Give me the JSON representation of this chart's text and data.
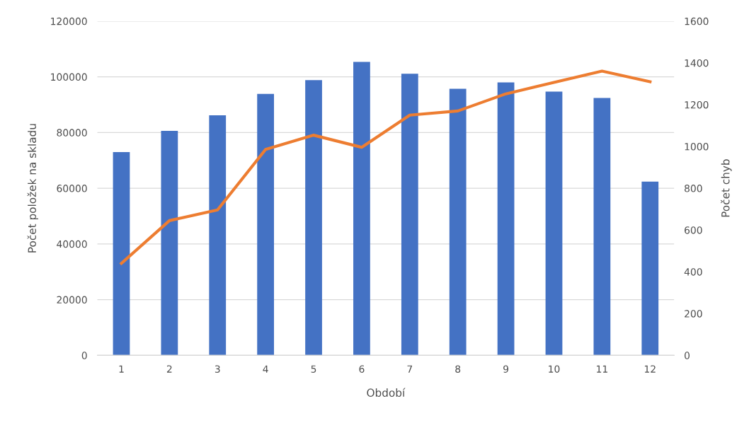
{
  "chart_data": {
    "type": "bar",
    "xlabel": "Období",
    "ylabel": "Počet položek na skladu",
    "y2label": "Počet chyb",
    "categories": [
      "1",
      "2",
      "3",
      "4",
      "5",
      "6",
      "7",
      "8",
      "9",
      "10",
      "11",
      "12"
    ],
    "series": [
      {
        "color": "#4472c4",
        "values": [
          73000,
          80600,
          86200,
          93900,
          98800,
          105400,
          101100,
          95700,
          98000,
          94700,
          92400,
          62400
        ]
      },
      {
        "type": "line",
        "axis": "y2",
        "color": "#ed7d31",
        "values": [
          440,
          645,
          696,
          986,
          1054,
          996,
          1150,
          1170,
          1252,
          1307,
          1361,
          1310
        ]
      }
    ],
    "ylim": [
      0,
      120000
    ],
    "yticks": [
      0,
      20000,
      40000,
      60000,
      80000,
      100000,
      120000
    ],
    "y2lim": [
      0,
      1600
    ],
    "y2ticks": [
      0,
      200,
      400,
      600,
      800,
      1000,
      1200,
      1400,
      1600
    ],
    "grid": "y",
    "legend": false,
    "marker": "none",
    "line_style": "solid"
  }
}
